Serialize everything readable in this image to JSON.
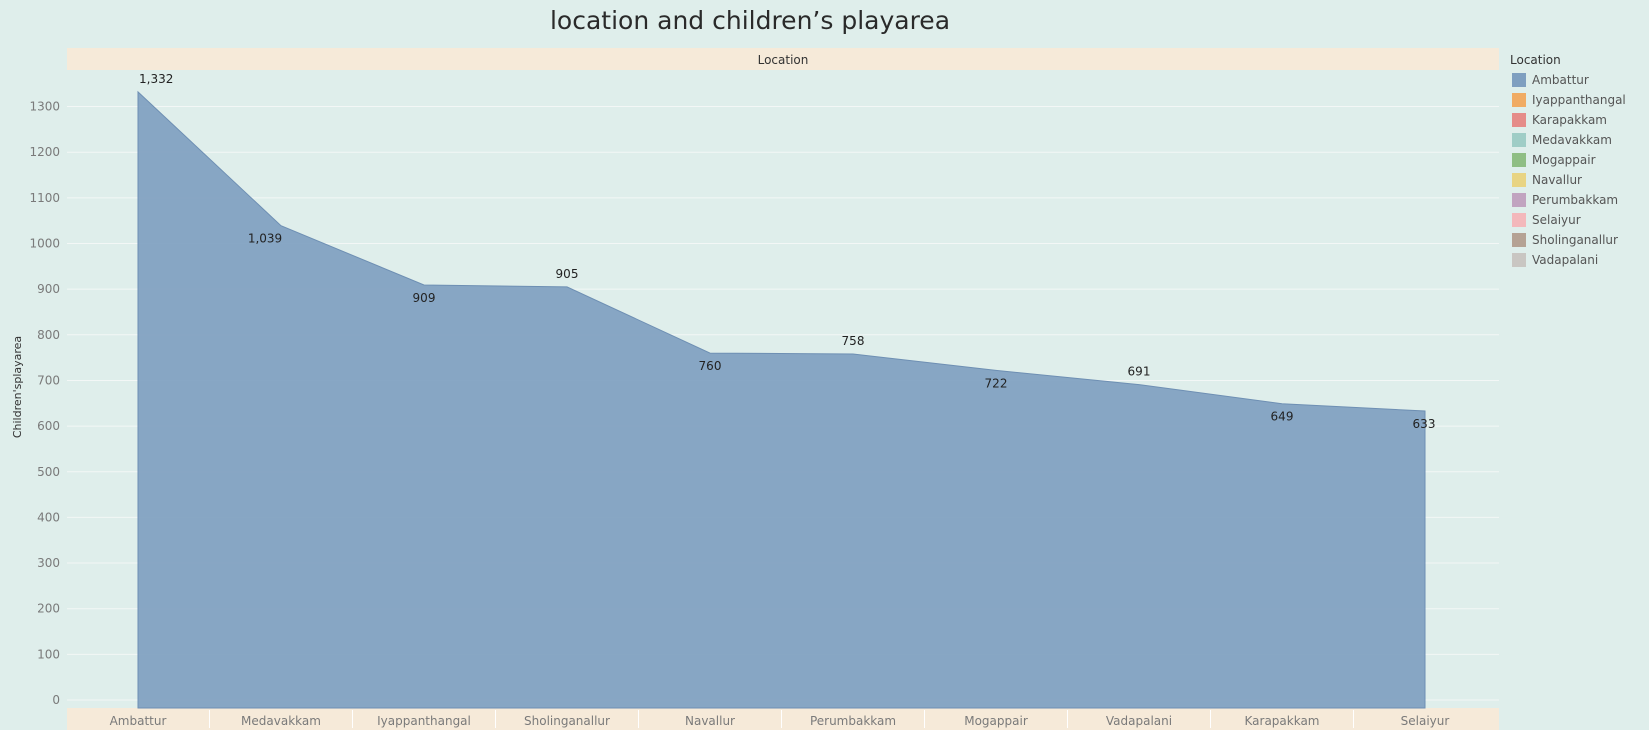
{
  "chart_data": {
    "type": "area",
    "title": "location and children’s playarea",
    "column_header": "Location",
    "ylabel": "Children'splayarea",
    "xlabel": "",
    "ylim": [
      0,
      1400
    ],
    "yticks": [
      0,
      100,
      200,
      300,
      400,
      500,
      600,
      700,
      800,
      900,
      1000,
      1100,
      1200,
      1300
    ],
    "grid": true,
    "categories": [
      "Ambattur",
      "Medavakkam",
      "Iyappanthangal",
      "Sholinganallur",
      "Navallur",
      "Perumbakkam",
      "Mogappair",
      "Vadapalani",
      "Karapakkam",
      "Selaiyur"
    ],
    "values": [
      1332,
      1039,
      909,
      905,
      760,
      758,
      722,
      691,
      649,
      633
    ],
    "data_labels": [
      "1,332",
      "1,039",
      "909",
      "905",
      "760",
      "758",
      "722",
      "691",
      "649",
      "633"
    ],
    "area_color": "#7f9fc0",
    "legend": {
      "title": "Location",
      "position": "right",
      "items": [
        {
          "label": "Ambattur",
          "color": "#7f9fc0"
        },
        {
          "label": "Iyappanthangal",
          "color": "#f0ab63"
        },
        {
          "label": "Karapakkam",
          "color": "#e58c89"
        },
        {
          "label": "Medavakkam",
          "color": "#9fcdc6"
        },
        {
          "label": "Mogappair",
          "color": "#8fbe84"
        },
        {
          "label": "Navallur",
          "color": "#e8d483"
        },
        {
          "label": "Perumbakkam",
          "color": "#c1a4c0"
        },
        {
          "label": "Selaiyur",
          "color": "#f3b8bb"
        },
        {
          "label": "Sholinganallur",
          "color": "#b5a294"
        },
        {
          "label": "Vadapalani",
          "color": "#c9c6c2"
        }
      ]
    }
  }
}
